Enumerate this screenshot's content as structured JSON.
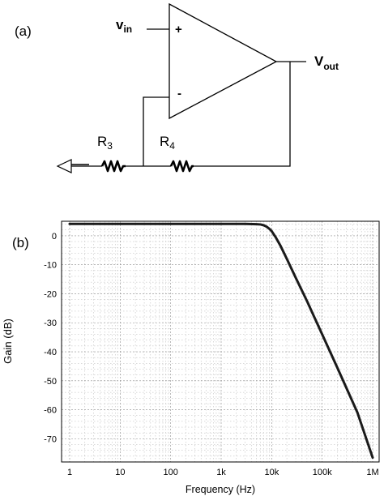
{
  "circuit": {
    "panel_label": "(a)",
    "vin": {
      "main": "v",
      "sub": "in"
    },
    "vout": {
      "main": "V",
      "sub": "out"
    },
    "plus_sign": "+",
    "minus_sign": "-",
    "r3": {
      "main": "R",
      "sub": "3"
    },
    "r4": {
      "main": "R",
      "sub": "4"
    }
  },
  "plot": {
    "panel_label": "(b)"
  },
  "chart_data": {
    "type": "line",
    "xlabel": "Frequency (Hz)",
    "ylabel": "Gain (dB)",
    "x_scale": "log",
    "xlim": [
      1,
      1000000
    ],
    "ylim": [
      -78,
      5
    ],
    "grid": true,
    "x_ticks": [
      {
        "value": 1,
        "label": "1"
      },
      {
        "value": 10,
        "label": "10"
      },
      {
        "value": 100,
        "label": "100"
      },
      {
        "value": 1000,
        "label": "1k"
      },
      {
        "value": 10000,
        "label": "10k"
      },
      {
        "value": 100000,
        "label": "100k"
      },
      {
        "value": 1000000,
        "label": "1M"
      }
    ],
    "y_ticks": [
      0,
      -10,
      -20,
      -30,
      -40,
      -50,
      -60,
      -70
    ],
    "series": [
      {
        "color": "#1a1a1a",
        "x": [
          1,
          10,
          100,
          1000,
          3000,
          5000,
          6000,
          7000,
          8000,
          9000,
          10000,
          12000,
          15000,
          20000,
          30000,
          50000,
          100000,
          200000,
          500000,
          1000000
        ],
        "y": [
          4.1,
          4.1,
          4.1,
          4.1,
          4.1,
          4.0,
          3.9,
          3.6,
          3.1,
          2.4,
          1.6,
          -0.5,
          -3.5,
          -8,
          -14.5,
          -22.5,
          -34,
          -45.5,
          -61,
          -76.5
        ]
      }
    ]
  }
}
